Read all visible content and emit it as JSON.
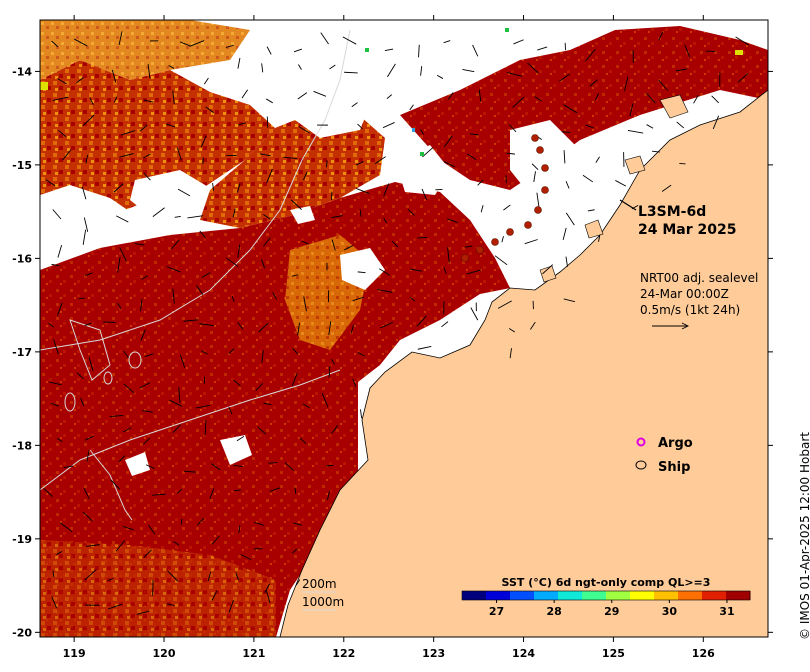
{
  "product": {
    "name": "L3SM-6d",
    "date": "24 Mar 2025"
  },
  "currents": {
    "source": "NRT00 adj. sealevel",
    "time": "24-Mar 00:00Z",
    "scale": "0.5m/s (1kt 24h)"
  },
  "legend": {
    "argo": "Argo",
    "ship": "Ship",
    "argo_color": "#e000e0"
  },
  "isobaths": {
    "shallow": "200m",
    "deep": "1000m"
  },
  "colorbar": {
    "title": "SST (°C) 6d ngt-only comp QL>=3",
    "ticks": [
      "27",
      "28",
      "29",
      "30",
      "31"
    ],
    "tick_values": [
      27,
      28,
      29,
      30,
      31
    ],
    "range": [
      26.4,
      31.4
    ],
    "colors": [
      "#00007f",
      "#0000d8",
      "#0050ff",
      "#00aaff",
      "#10e8d8",
      "#40ff90",
      "#a0ff40",
      "#ffff00",
      "#ffc000",
      "#ff7000",
      "#e02000",
      "#a00000"
    ]
  },
  "credit": "© IMOS 01-Apr-2025 12:00 Hobart",
  "axes": {
    "lon_ticks": [
      "119",
      "120",
      "121",
      "122",
      "123",
      "124",
      "125",
      "126"
    ],
    "lon_values": [
      119,
      120,
      121,
      122,
      123,
      124,
      125,
      126
    ],
    "lat_ticks": [
      "-14",
      "-15",
      "-16",
      "-17",
      "-18",
      "-19",
      "-20"
    ],
    "lat_values": [
      -14,
      -15,
      -16,
      -17,
      -18,
      -19,
      -20
    ],
    "lon_range": [
      118.62,
      126.72
    ],
    "lat_range": [
      -20.05,
      -13.45
    ]
  },
  "colors": {
    "land": "#ffcc99",
    "sst_warm": "#a80000",
    "sst_mid": "#d24a00",
    "sst_light": "#ee8a10",
    "cloud": "#ffffff"
  }
}
